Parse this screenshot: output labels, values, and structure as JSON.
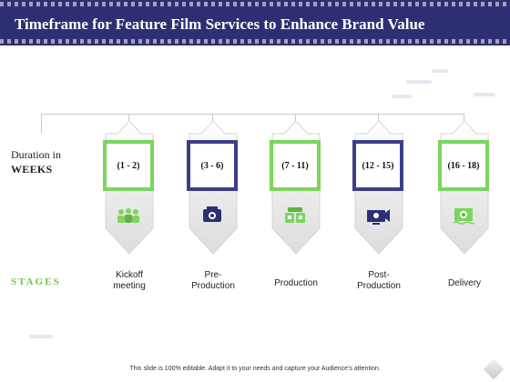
{
  "header": {
    "title": "Timeframe for Feature Film Services to Enhance Brand Value"
  },
  "left": {
    "duration_line1": "Duration in",
    "duration_line2": "WEEKS",
    "stages_label": "STAGES"
  },
  "steps": [
    {
      "duration": "(1 - 2)",
      "stage_line1": "Kickoff",
      "stage_line2": "meeting",
      "icon": "team-meeting-icon",
      "frame_color": "#7cd55d"
    },
    {
      "duration": "(3 - 6)",
      "stage_line1": "Pre-",
      "stage_line2": "Production",
      "icon": "film-camera-icon",
      "frame_color": "#3d3f86"
    },
    {
      "duration": "(7 - 11)",
      "stage_line1": "Production",
      "stage_line2": "",
      "icon": "production-set-icon",
      "frame_color": "#7cd55d"
    },
    {
      "duration": "(12 - 15)",
      "stage_line1": "Post-",
      "stage_line2": "Production",
      "icon": "editing-monitor-icon",
      "frame_color": "#3d3f86"
    },
    {
      "duration": "(16 - 18)",
      "stage_line1": "Delivery",
      "stage_line2": "",
      "icon": "film-delivery-icon",
      "frame_color": "#7cd55d"
    }
  ],
  "footer": {
    "text": "This slide is 100% editable. Adapt it to your needs and capture your Audience’s attention."
  },
  "colors": {
    "header": "#2e2f73",
    "green": "#7cd55d",
    "blue": "#3d3f86"
  }
}
